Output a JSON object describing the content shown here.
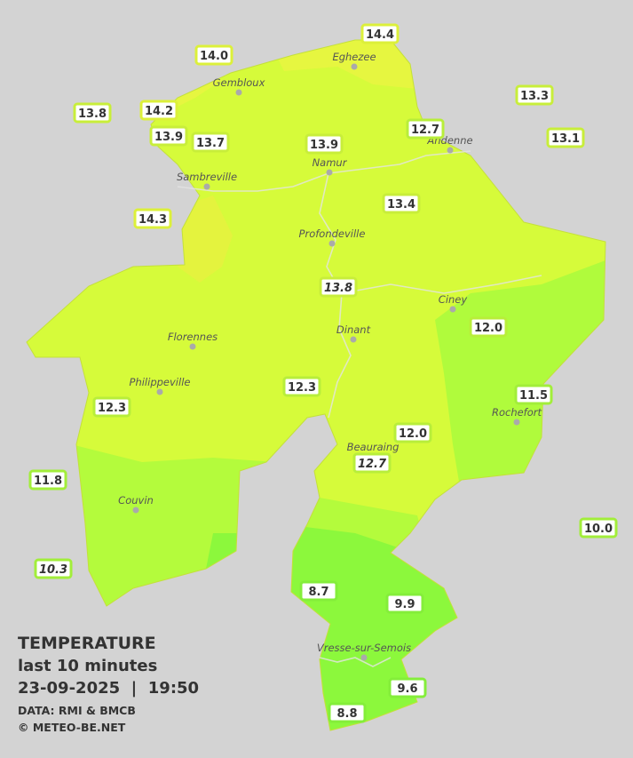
{
  "legend": {
    "title": "TEMPERATURE",
    "period": "last 10 minutes",
    "datetime": "23-09-2025  |  19:50",
    "source": "DATA: RMI & BMCB",
    "credit": "© METEO-BE.NET"
  },
  "towns": [
    "Eghezee",
    "Gembloux",
    "Andenne",
    "Namur",
    "Sambreville",
    "Profondeville",
    "Ciney",
    "Dinant",
    "Florennes",
    "Philippeville",
    "Rochefort",
    "Beauraing",
    "Couvin",
    "Vresse-sur-Semois"
  ],
  "stations": [
    "14.4",
    "14.0",
    "13.3",
    "13.8",
    "14.2",
    "12.7",
    "13.9",
    "13.7",
    "13.9",
    "13.1",
    "14.3",
    "13.4",
    "13.8",
    "12.0",
    "11.5",
    "12.3",
    "12.3",
    "12.0",
    "12.7",
    "11.8",
    "10.0",
    "10.3",
    "8.7",
    "9.9",
    "9.6",
    "8.8"
  ]
}
